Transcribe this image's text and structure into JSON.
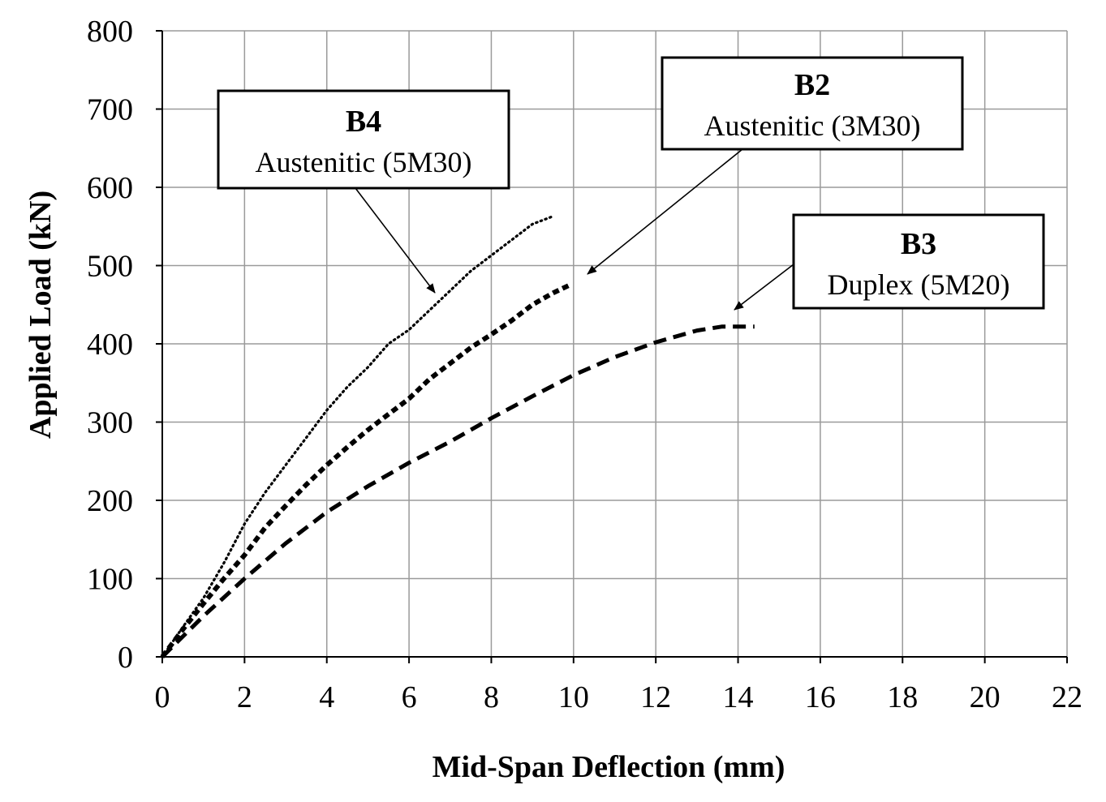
{
  "chart_data": {
    "type": "line",
    "xlabel": "Mid-Span Deflection (mm)",
    "ylabel": "Applied Load (kN)",
    "xlim": [
      0,
      22
    ],
    "ylim": [
      0,
      800
    ],
    "xticks": [
      "0",
      "2",
      "4",
      "6",
      "8",
      "10",
      "12",
      "14",
      "16",
      "18",
      "20",
      "22"
    ],
    "yticks": [
      "0",
      "100",
      "200",
      "300",
      "400",
      "500",
      "600",
      "700",
      "800"
    ],
    "grid": true,
    "series": [
      {
        "name": "B4",
        "description": "Austenitic (5M30)",
        "style": "dotted",
        "x": [
          0,
          0.5,
          1.0,
          1.5,
          2.0,
          2.5,
          3.0,
          3.5,
          4.0,
          4.5,
          5.0,
          5.5,
          6.0,
          6.5,
          7.0,
          7.5,
          8.0,
          8.5,
          9.0,
          9.5
        ],
        "y": [
          0,
          38,
          75,
          120,
          170,
          210,
          245,
          280,
          315,
          345,
          370,
          400,
          418,
          443,
          468,
          493,
          513,
          533,
          553,
          563
        ]
      },
      {
        "name": "B2",
        "description": "Austenitic (3M30)",
        "style": "dashed",
        "x": [
          0,
          0.5,
          1.0,
          1.5,
          2.0,
          2.5,
          3.0,
          3.5,
          4.0,
          4.5,
          5.0,
          5.5,
          6.0,
          6.5,
          7.0,
          7.5,
          8.0,
          8.5,
          9.0,
          9.5,
          9.9
        ],
        "y": [
          0,
          35,
          68,
          100,
          130,
          165,
          193,
          220,
          245,
          268,
          290,
          310,
          330,
          355,
          375,
          395,
          412,
          430,
          450,
          465,
          475
        ]
      },
      {
        "name": "B3",
        "description": "Duplex (5M20)",
        "style": "long-dash",
        "x": [
          0,
          1,
          2,
          3,
          4,
          5,
          6,
          7,
          8,
          9,
          10,
          11,
          12,
          13,
          13.6,
          14.4
        ],
        "y": [
          0,
          52,
          100,
          145,
          185,
          218,
          248,
          275,
          305,
          333,
          360,
          383,
          402,
          417,
          422,
          422
        ]
      }
    ],
    "annotations": [
      {
        "label": "B4",
        "text": "Austenitic (5M30)"
      },
      {
        "label": "B2",
        "text": "Austenitic (3M30)"
      },
      {
        "label": "B3",
        "text": "Duplex (5M20)"
      }
    ]
  }
}
